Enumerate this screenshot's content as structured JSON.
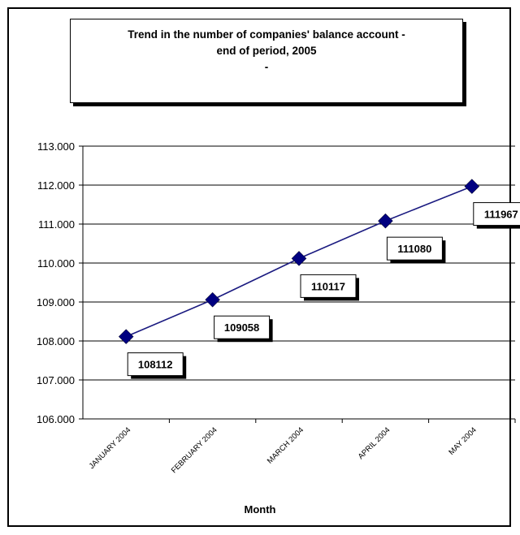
{
  "chart_data": {
    "type": "line",
    "title": "Trend in the number of companies' balance account - end of period, 2005",
    "title_lines": [
      "Trend in the number of companies' balance account -",
      "end of period, 2005",
      "-"
    ],
    "xlabel": "Month",
    "ylabel": "",
    "categories": [
      "JANUARY 2004",
      "FEBRUARY 2004",
      "MARCH 2004",
      "APRIL 2004",
      "MAY 2004"
    ],
    "series": [
      {
        "values": [
          108112,
          109058,
          110117,
          111080,
          111967
        ]
      }
    ],
    "data_labels": [
      "108112",
      "109058",
      "110117",
      "111080",
      "111967"
    ],
    "ylim": [
      106000,
      113000
    ],
    "yticks": [
      106000,
      107000,
      108000,
      109000,
      110000,
      111000,
      112000,
      113000
    ],
    "ytick_labels": [
      "106.000",
      "107.000",
      "108.000",
      "109.000",
      "110.000",
      "111.000",
      "112.000",
      "113.000"
    ],
    "grid": true,
    "legend": "none",
    "colors": {
      "line": "#1a1a80",
      "marker": "#000080",
      "grid": "#000000"
    }
  }
}
